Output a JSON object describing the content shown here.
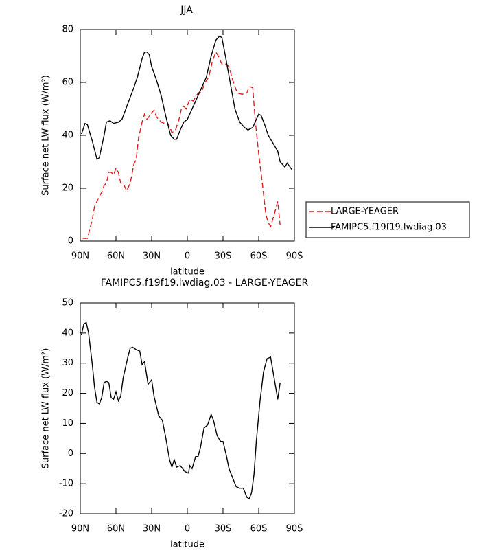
{
  "chart_data": [
    {
      "type": "line",
      "title": "JJA",
      "xlabel": "latitude",
      "ylabel": "Surface net LW flux (W/m²)",
      "xlim": [
        90,
        -90
      ],
      "xticks": [
        {
          "value": 90,
          "label": "90N"
        },
        {
          "value": 60,
          "label": "60N"
        },
        {
          "value": 30,
          "label": "30N"
        },
        0,
        {
          "value": -30,
          "label": "30S"
        },
        {
          "value": -60,
          "label": "60S"
        },
        {
          "value": -90,
          "label": "90S"
        }
      ],
      "ylim": [
        0,
        80
      ],
      "yticks": [
        0,
        20,
        40,
        60,
        80
      ],
      "legend": "right",
      "series": [
        {
          "name": "LARGE-YEAGER",
          "color": "#e31a1c",
          "dash": true,
          "x": [
            88,
            84,
            80,
            78,
            75,
            72,
            70,
            68,
            66,
            64,
            62,
            60,
            58,
            56,
            53,
            51,
            48,
            45,
            43,
            41,
            38,
            36,
            34,
            30,
            28,
            26,
            22,
            19,
            17,
            15,
            13,
            10,
            7,
            5,
            3,
            1,
            -2,
            -5,
            -9,
            -12,
            -15,
            -18,
            -21,
            -24,
            -26,
            -29,
            -32,
            -35,
            -38,
            -42,
            -46,
            -50,
            -52,
            -55,
            -57,
            -60,
            -63,
            -66,
            -68,
            -70,
            -73,
            -76,
            -78
          ],
          "values": [
            1,
            1,
            8,
            13,
            16,
            18.5,
            21,
            22,
            26,
            26,
            25,
            27.5,
            26,
            22,
            21,
            19,
            22,
            29,
            31,
            39,
            45,
            48,
            46,
            48.5,
            49.5,
            47,
            45,
            44.5,
            45,
            43.5,
            41,
            42,
            46,
            50,
            51,
            50,
            53.5,
            53,
            56,
            56.5,
            60,
            62,
            68,
            71.5,
            70,
            67,
            67,
            66,
            61,
            56,
            55.5,
            56,
            58.5,
            58,
            46,
            33,
            22,
            10,
            7,
            5.5,
            10,
            15,
            6
          ]
        },
        {
          "name": "FAMIPC5.f19f19.lwdiag.03",
          "color": "#000000",
          "dash": false,
          "x": [
            89,
            86,
            84,
            80,
            76,
            74,
            70,
            68,
            65,
            62,
            58,
            55,
            50,
            45,
            42,
            38,
            36,
            34,
            32,
            30,
            26,
            22,
            18,
            14,
            11,
            9,
            6,
            3,
            0,
            -4,
            -8,
            -12,
            -16,
            -20,
            -24,
            -27,
            -29,
            -32,
            -36,
            -40,
            -44,
            -48,
            -51,
            -55,
            -58,
            -60,
            -62,
            -65,
            -68,
            -72,
            -76,
            -78,
            -82,
            -84,
            -88
          ],
          "values": [
            40.5,
            44.5,
            44,
            38,
            31,
            31.5,
            40,
            45,
            45.5,
            44.5,
            45,
            46,
            52,
            58,
            62,
            69,
            71.5,
            71.5,
            70.5,
            66,
            61,
            55,
            47,
            40,
            38.5,
            38.5,
            42,
            45,
            46,
            50,
            54,
            58,
            62,
            70,
            76,
            77.5,
            77,
            70,
            60,
            50,
            45,
            43,
            42,
            43,
            46,
            48,
            47.5,
            44,
            40,
            37,
            34,
            30,
            28,
            29.5,
            27
          ]
        }
      ]
    },
    {
      "type": "line",
      "title": "FAMIPC5.f19f19.lwdiag.03 - LARGE-YEAGER",
      "xlabel": "latitude",
      "ylabel": "Surface net LW flux (W/m²)",
      "xlim": [
        90,
        -90
      ],
      "xticks": [
        {
          "value": 90,
          "label": "90N"
        },
        {
          "value": 60,
          "label": "60N"
        },
        {
          "value": 30,
          "label": "30N"
        },
        0,
        {
          "value": -30,
          "label": "30S"
        },
        {
          "value": -60,
          "label": "60S"
        },
        {
          "value": -90,
          "label": "90S"
        }
      ],
      "ylim": [
        -20,
        50
      ],
      "yticks": [
        -20,
        -10,
        0,
        10,
        20,
        30,
        40,
        50
      ],
      "series": [
        {
          "color": "#000000",
          "dash": false,
          "x": [
            89,
            87,
            85,
            83,
            80,
            78,
            76,
            74,
            72,
            70,
            68,
            66,
            64,
            62,
            60,
            58,
            56,
            54,
            50,
            48,
            46,
            43,
            40,
            38,
            36,
            33,
            30,
            28,
            24,
            21,
            18,
            15,
            13,
            11,
            9,
            6,
            2,
            -1,
            -2,
            -4,
            -7,
            -9,
            -11,
            -14,
            -17,
            -20,
            -22,
            -25,
            -28,
            -30,
            -33,
            -35,
            -38,
            -41,
            -44,
            -47,
            -50,
            -52,
            -54,
            -56,
            -58,
            -61,
            -64,
            -67,
            -70,
            -73,
            -76,
            -78
          ],
          "values": [
            39.5,
            43,
            43.5,
            40,
            30,
            22,
            17,
            16.5,
            18.5,
            23.5,
            24,
            23.5,
            18.5,
            18,
            20.5,
            17.5,
            19,
            25,
            32,
            35,
            35.3,
            34.5,
            34,
            29.5,
            30.5,
            23,
            24.5,
            19,
            12.5,
            11,
            5,
            -2,
            -4.5,
            -2,
            -4.5,
            -4,
            -6,
            -6.5,
            -4,
            -5,
            -1,
            -1,
            2,
            8.5,
            9.5,
            13,
            11,
            6,
            4,
            4,
            -1,
            -5,
            -8,
            -11,
            -11.5,
            -11.5,
            -14.5,
            -15,
            -13,
            -7,
            4,
            17,
            27,
            31.5,
            32,
            25,
            18,
            23.5
          ]
        }
      ]
    }
  ]
}
